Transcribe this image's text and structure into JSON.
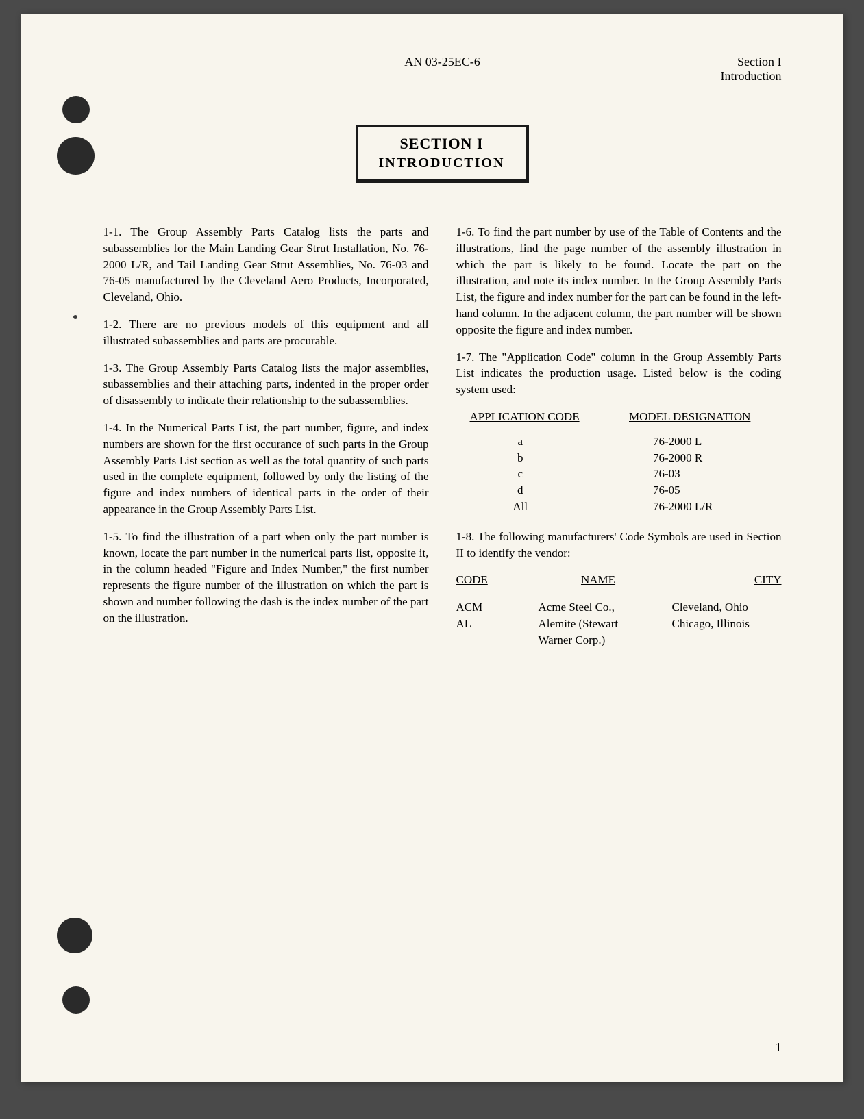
{
  "header": {
    "center": "AN 03-25EC-6",
    "right_line1": "Section I",
    "right_line2": "Introduction"
  },
  "section_box": {
    "number": "SECTION I",
    "title": "INTRODUCTION"
  },
  "paragraphs": {
    "p1": "1-1. The Group Assembly Parts Catalog lists the parts and subassemblies for the Main Landing Gear Strut Installation, No. 76-2000 L/R, and Tail Landing Gear Strut Assemblies, No. 76-03 and 76-05 manufactured by the Cleveland Aero Products, Incorporated, Cleveland, Ohio.",
    "p2": "1-2. There are no previous models of this equipment and all illustrated subassemblies and parts are procurable.",
    "p3": "1-3. The Group Assembly Parts Catalog lists the major assemblies, subassemblies and their attaching parts, indented in the proper order of disassembly to indicate their relationship to the subassemblies.",
    "p4": "1-4. In the Numerical Parts List, the part number, figure, and index numbers are shown for the first occurance of such parts in the Group Assembly Parts List section as well as the total quantity of such parts used in the complete equipment, followed by only the listing of the figure and index numbers of identical parts in the order of their appearance in the Group Assembly Parts List.",
    "p5": "1-5. To find the illustration of a part when only the part number is known, locate the part number in the numerical parts list, opposite it, in the column headed \"Figure and Index Number,\" the first number represents the figure number of the illustration on which the part is shown and number following the dash is the index number of the part on the illustration.",
    "p6": "1-6. To find the part number by use of the Table of Contents and the illustrations, find the page number of the assembly illustration in which the part is likely to be found. Locate the part on the illustration, and note its index number. In the Group Assembly Parts List, the figure and index number for the part can be found in the left-hand column. In the adjacent column, the part number will be shown opposite the figure and index number.",
    "p7": "1-7. The \"Application Code\" column in the Group Assembly Parts List indicates the production usage. Listed below is the coding system used:",
    "p8": "1-8. The following manufacturers' Code Symbols are used in Section II to identify the vendor:"
  },
  "app_table": {
    "header_col1": "APPLICATION CODE",
    "header_col2": "MODEL DESIGNATION",
    "rows": [
      {
        "code": "a",
        "model": "76-2000 L"
      },
      {
        "code": "b",
        "model": "76-2000 R"
      },
      {
        "code": "c",
        "model": "76-03"
      },
      {
        "code": "d",
        "model": "76-05"
      },
      {
        "code": "All",
        "model": "76-2000 L/R"
      }
    ]
  },
  "vendor_table": {
    "header_col1": "CODE",
    "header_col2": "NAME",
    "header_col3": "CITY",
    "rows": [
      {
        "code": "ACM",
        "name": "Acme Steel Co.,",
        "city": "Cleveland, Ohio"
      },
      {
        "code": "AL",
        "name": "Alemite (Stewart",
        "city": "Chicago, Illinois"
      },
      {
        "code": "",
        "name": "Warner Corp.)",
        "city": ""
      }
    ]
  },
  "page_number": "1"
}
